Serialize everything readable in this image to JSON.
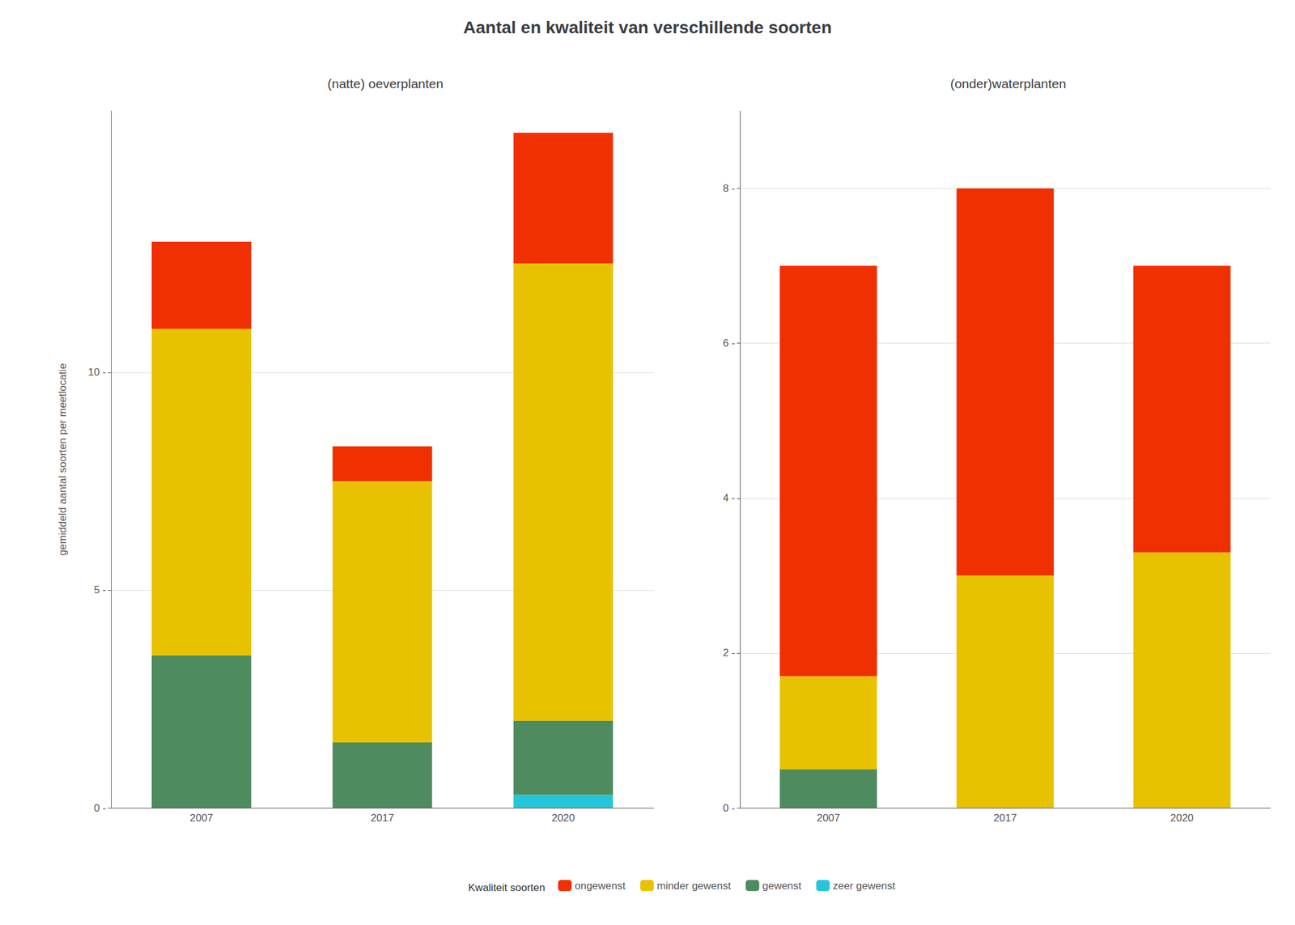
{
  "title": "Aantal en kwaliteit van verschillende soorten",
  "legend_title": "Kwaliteit soorten",
  "legend": "bottom",
  "chart_data": [
    {
      "type": "bar",
      "stacked": true,
      "title": "(natte) oeverplanten",
      "ylabel": "gemiddeld aantal soorten per meetlocatie",
      "categories": [
        "2007",
        "2017",
        "2020"
      ],
      "series": [
        {
          "name": "zeer gewenst",
          "color": "#26C6DA",
          "values": [
            0.0,
            0.0,
            0.3
          ]
        },
        {
          "name": "gewenst",
          "color": "#4E8B5F",
          "values": [
            3.5,
            1.5,
            1.7
          ]
        },
        {
          "name": "minder gewenst",
          "color": "#E8C200",
          "values": [
            7.5,
            6.0,
            10.5
          ]
        },
        {
          "name": "ongewenst",
          "color": "#F03000",
          "values": [
            2.0,
            0.8,
            3.0
          ]
        }
      ],
      "ylim": [
        0,
        16
      ],
      "yticks": [
        {
          "value": 0,
          "label": "0 -"
        },
        {
          "value": 5,
          "label": "5 -"
        },
        {
          "value": 10,
          "label": "10 -"
        }
      ],
      "grid": true
    },
    {
      "type": "bar",
      "stacked": true,
      "title": "(onder)waterplanten",
      "categories": [
        "2007",
        "2017",
        "2020"
      ],
      "series": [
        {
          "name": "zeer gewenst",
          "color": "#26C6DA",
          "values": [
            0.0,
            0.0,
            0.0
          ]
        },
        {
          "name": "gewenst",
          "color": "#4E8B5F",
          "values": [
            0.5,
            0.0,
            0.0
          ]
        },
        {
          "name": "minder gewenst",
          "color": "#E8C200",
          "values": [
            1.2,
            3.0,
            3.3
          ]
        },
        {
          "name": "ongewenst",
          "color": "#F03000",
          "values": [
            5.3,
            5.0,
            3.7
          ]
        }
      ],
      "ylim": [
        0,
        9
      ],
      "yticks": [
        {
          "value": 0,
          "label": "0 -"
        },
        {
          "value": 2,
          "label": "2 -"
        },
        {
          "value": 4,
          "label": "4 -"
        },
        {
          "value": 6,
          "label": "6 -"
        },
        {
          "value": 8,
          "label": "8 -"
        }
      ],
      "grid": true
    }
  ]
}
